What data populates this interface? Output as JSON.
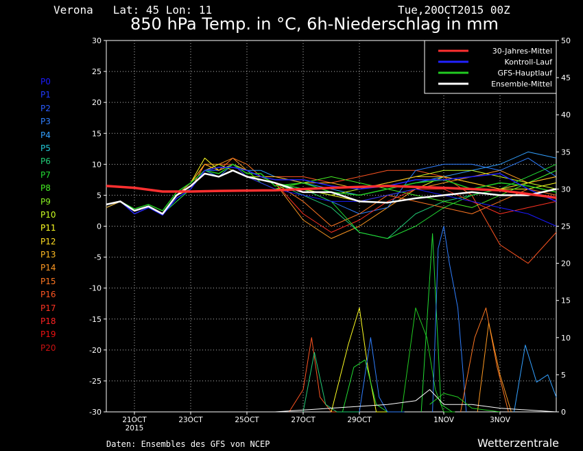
{
  "header": {
    "location": "Verona   Lat: 45 Lon: 11",
    "date": "Tue,20OCT2015 00Z",
    "title": "850 hPa Temp. in °C, 6h-Niederschlag in mm"
  },
  "footer": {
    "source": "Daten: Ensembles des GFS von NCEP",
    "brand": "Wetterzentrale"
  },
  "members": [
    {
      "label": "P0",
      "color": "#1a1aff"
    },
    {
      "label": "P1",
      "color": "#1f3bff"
    },
    {
      "label": "P2",
      "color": "#2a5cff"
    },
    {
      "label": "P3",
      "color": "#2f7fff"
    },
    {
      "label": "P4",
      "color": "#33a0ff"
    },
    {
      "label": "P5",
      "color": "#22c8d8"
    },
    {
      "label": "P6",
      "color": "#22cc77"
    },
    {
      "label": "P7",
      "color": "#22dd33"
    },
    {
      "label": "P8",
      "color": "#44ee22"
    },
    {
      "label": "P9",
      "color": "#88f022"
    },
    {
      "label": "P10",
      "color": "#ccff22"
    },
    {
      "label": "P11",
      "color": "#ffff22"
    },
    {
      "label": "P12",
      "color": "#ffdd22"
    },
    {
      "label": "P13",
      "color": "#ffbb22"
    },
    {
      "label": "P14",
      "color": "#ff9922"
    },
    {
      "label": "P15",
      "color": "#ff7722"
    },
    {
      "label": "P16",
      "color": "#ff5522"
    },
    {
      "label": "P17",
      "color": "#ff3322"
    },
    {
      "label": "P18",
      "color": "#ff2222"
    },
    {
      "label": "P19",
      "color": "#ee1111"
    },
    {
      "label": "P20",
      "color": "#cc1111"
    }
  ],
  "chart_data": {
    "type": "line",
    "x_ticks": [
      "21OCT",
      "23OCT",
      "25OCT",
      "27OCT",
      "29OCT",
      "1NOV",
      "3NOV"
    ],
    "x_tick_day_index": [
      1,
      3,
      5,
      7,
      9,
      12,
      14
    ],
    "x_sublabel": "2015",
    "x_range_days": [
      0,
      16
    ],
    "y_left": {
      "ticks": [
        30,
        25,
        20,
        15,
        10,
        5,
        0,
        -5,
        -10,
        -15,
        -20,
        -25,
        -30
      ],
      "range": [
        -30,
        30
      ]
    },
    "y_right": {
      "ticks": [
        50,
        45,
        40,
        35,
        30,
        25,
        20,
        15,
        10,
        5,
        0
      ],
      "range": [
        0,
        50
      ]
    },
    "grid": true,
    "legend_position": "top-right",
    "legend": [
      {
        "label": "30-Jahres-Mittel",
        "color": "#ff3030"
      },
      {
        "label": "Kontroll-Lauf",
        "color": "#2222ff"
      },
      {
        "label": "GFS-Hauptlauf",
        "color": "#22cc22"
      },
      {
        "label": "Ensemble-Mittel",
        "color": "#ffffff"
      }
    ],
    "series": [
      {
        "name": "30-Jahres-Mittel",
        "color": "#ff3030",
        "width": 3.5,
        "x": [
          0,
          1,
          2,
          3,
          4,
          6,
          8,
          10,
          12,
          14,
          16
        ],
        "y": [
          6.5,
          6.2,
          5.6,
          5.6,
          5.7,
          5.8,
          6.2,
          6.5,
          6.2,
          5.8,
          4.6
        ]
      },
      {
        "name": "Ensemble-Mittel",
        "color": "#ffffff",
        "width": 2.5,
        "x": [
          0,
          0.5,
          1,
          1.5,
          2,
          2.5,
          3,
          3.5,
          4,
          4.5,
          5,
          5.5,
          6,
          7,
          8,
          9,
          10,
          11,
          12,
          13,
          14,
          15,
          16
        ],
        "y": [
          3.5,
          4.0,
          2.5,
          3.2,
          2.0,
          5.0,
          6.5,
          8.5,
          8.0,
          9.0,
          8.0,
          7.5,
          7.0,
          5.5,
          5.5,
          4.0,
          3.8,
          4.5,
          5.0,
          5.5,
          5.0,
          5.0,
          6.0
        ]
      },
      {
        "name": "Kontroll-Lauf",
        "color": "#2222ff",
        "width": 1.5,
        "x": [
          0,
          0.5,
          1,
          1.5,
          2,
          2.5,
          3,
          3.5,
          4,
          4.5,
          5,
          5.5,
          6,
          7,
          8,
          9,
          10,
          11,
          12,
          13,
          14,
          15,
          16
        ],
        "y": [
          3.5,
          4.0,
          2.0,
          3.0,
          1.8,
          4.5,
          6.0,
          9.0,
          9.5,
          9.5,
          9.0,
          8.0,
          7.5,
          7.5,
          6.5,
          6.0,
          6.5,
          7.5,
          7.5,
          8.0,
          8.5,
          6.0,
          4.0
        ]
      },
      {
        "name": "GFS-Hauptlauf",
        "color": "#22cc22",
        "width": 1.5,
        "x": [
          0,
          0.5,
          1,
          1.5,
          2,
          2.5,
          3,
          3.5,
          4,
          4.5,
          5,
          5.5,
          6,
          7,
          8,
          9,
          10,
          11,
          12,
          13,
          14,
          15,
          16
        ],
        "y": [
          3.5,
          4.0,
          2.8,
          3.5,
          2.5,
          5.5,
          7.0,
          9.0,
          8.5,
          10.0,
          8.5,
          8.5,
          6.5,
          7.0,
          5.5,
          5.0,
          6.0,
          7.0,
          7.5,
          6.0,
          7.0,
          6.5,
          5.5
        ]
      }
    ],
    "ensemble_members": [
      {
        "color": "#ffff22",
        "y": [
          3,
          4,
          2,
          3,
          2,
          5,
          7,
          11,
          9,
          10,
          8,
          7,
          6,
          6,
          5,
          4,
          5,
          6,
          8,
          7,
          6,
          6,
          7
        ]
      },
      {
        "color": "#ff9922",
        "y": [
          3,
          4,
          2,
          3,
          2,
          5,
          6,
          10,
          10,
          11,
          9,
          8,
          7,
          1,
          -2,
          0,
          3,
          6,
          7,
          8,
          9,
          7,
          8
        ]
      },
      {
        "color": "#ff5522",
        "y": [
          3,
          4,
          2,
          3,
          2,
          5,
          7,
          9,
          10,
          10,
          9,
          8,
          8,
          8,
          7,
          8,
          9,
          9,
          8,
          5,
          -3,
          -6,
          -1
        ]
      },
      {
        "color": "#22cc77",
        "y": [
          3,
          4,
          2,
          3,
          2,
          5,
          6,
          9,
          9,
          10,
          9,
          8,
          7,
          5,
          3,
          -1,
          -2,
          2,
          4,
          5,
          6,
          7,
          9
        ]
      },
      {
        "color": "#2f7fff",
        "y": [
          3,
          4,
          2,
          3,
          2,
          4,
          6,
          9,
          8,
          10,
          9,
          8,
          7,
          6,
          4,
          2,
          3,
          9,
          10,
          10,
          9,
          11,
          8
        ]
      },
      {
        "color": "#44ee22",
        "y": [
          3,
          4,
          2,
          3,
          2,
          5,
          7,
          9,
          9,
          10,
          9,
          7,
          6,
          7,
          8,
          7,
          6,
          5,
          4,
          3,
          5,
          7,
          9
        ]
      },
      {
        "color": "#ff7722",
        "y": [
          3,
          4,
          2,
          3,
          2,
          5,
          6,
          10,
          9,
          11,
          10,
          8,
          7,
          4,
          0,
          2,
          5,
          4,
          3,
          2,
          4,
          6,
          5
        ]
      },
      {
        "color": "#33a0ff",
        "y": [
          3,
          4,
          2,
          3,
          2,
          5,
          7,
          9,
          9,
          10,
          9,
          9,
          8,
          7,
          6,
          5,
          6,
          7,
          8,
          9,
          10,
          12,
          11
        ]
      },
      {
        "color": "#ccff22",
        "y": [
          3,
          4,
          2,
          3,
          2,
          5,
          6,
          9,
          10,
          9,
          8,
          8,
          7,
          6,
          5,
          6,
          7,
          8,
          9,
          9,
          8,
          7,
          6
        ]
      },
      {
        "color": "#ff3322",
        "y": [
          3,
          4,
          2,
          3,
          2,
          5,
          7,
          10,
          9,
          10,
          9,
          8,
          7,
          2,
          -1,
          1,
          4,
          6,
          6,
          4,
          2,
          3,
          4
        ]
      },
      {
        "color": "#22dd33",
        "y": [
          3,
          4,
          2,
          3,
          2,
          4,
          6,
          9,
          9,
          10,
          9,
          8,
          7,
          6,
          4,
          -1,
          -2,
          0,
          3,
          5,
          6,
          8,
          10
        ]
      },
      {
        "color": "#1a1aff",
        "y": [
          3,
          4,
          2,
          3,
          2,
          5,
          7,
          9,
          9,
          10,
          8,
          7,
          6,
          5,
          4,
          4,
          5,
          6,
          5,
          4,
          3,
          2,
          0
        ]
      },
      {
        "color": "#ffbb22",
        "y": [
          3,
          4,
          2,
          3,
          2,
          5,
          7,
          10,
          9,
          10,
          9,
          8,
          8,
          7,
          7,
          6,
          7,
          8,
          8,
          7,
          6,
          7,
          8
        ]
      }
    ],
    "precip_members": [
      {
        "color": "#ff5522",
        "x": [
          6.5,
          7,
          7.3,
          7.6,
          8,
          9
        ],
        "y": [
          0,
          3,
          10,
          2,
          0,
          0
        ]
      },
      {
        "color": "#22cc77",
        "x": [
          7,
          7.4,
          7.8,
          8.2,
          9
        ],
        "y": [
          0,
          8,
          1,
          0,
          0
        ]
      },
      {
        "color": "#ffff22",
        "x": [
          8,
          8.6,
          9,
          9.3,
          9.6,
          10
        ],
        "y": [
          0,
          9,
          14,
          6,
          0,
          0
        ]
      },
      {
        "color": "#22dd33",
        "x": [
          8.4,
          8.8,
          9.2,
          9.6,
          10
        ],
        "y": [
          0,
          6,
          7,
          1,
          0
        ]
      },
      {
        "color": "#2f7fff",
        "x": [
          9,
          9.4,
          9.7,
          10,
          10.6
        ],
        "y": [
          0,
          10,
          2,
          0,
          0
        ]
      },
      {
        "color": "#22cc22",
        "x": [
          10.5,
          11,
          11.4,
          11.7,
          12,
          12.4
        ],
        "y": [
          0,
          14,
          10,
          3,
          0,
          0
        ]
      },
      {
        "color": "#22dd33",
        "x": [
          11.2,
          11.6,
          11.9,
          12.3
        ],
        "y": [
          0,
          24,
          1,
          0
        ]
      },
      {
        "color": "#2f7fff",
        "x": [
          11.6,
          11.8,
          12.0,
          12.2,
          12.5,
          12.8
        ],
        "y": [
          0,
          22,
          25,
          20,
          14,
          0
        ]
      },
      {
        "color": "#ff7722",
        "x": [
          12.6,
          13.1,
          13.5,
          13.9,
          14.3
        ],
        "y": [
          0,
          10,
          14,
          6,
          0
        ]
      },
      {
        "color": "#ff9922",
        "x": [
          13.2,
          13.6,
          14,
          14.4
        ],
        "y": [
          0,
          12,
          5,
          0
        ]
      },
      {
        "color": "#33a0ff",
        "x": [
          14.5,
          14.9,
          15.3,
          15.7,
          16
        ],
        "y": [
          0,
          9,
          4,
          5,
          2
        ]
      },
      {
        "color": "#ffffff",
        "x": [
          6,
          8,
          10,
          11,
          11.5,
          12,
          13,
          14,
          16
        ],
        "y": [
          0,
          0.5,
          1,
          1.5,
          3,
          1,
          1,
          0.5,
          0
        ]
      },
      {
        "color": "#22cc22",
        "x": [
          11.5,
          12,
          12.5,
          13,
          14
        ],
        "y": [
          1,
          2.5,
          2,
          0.5,
          0
        ]
      }
    ]
  }
}
